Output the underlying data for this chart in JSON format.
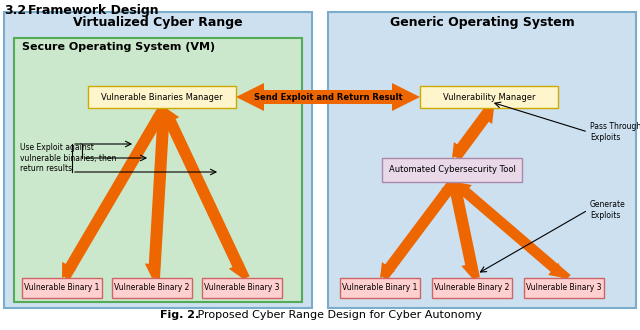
{
  "title_bold": "Fig. 2.",
  "title_rest": " Proposed Cyber Range Design for Cyber Autonomy",
  "header_num": "3.2",
  "header_text": "Framework Design",
  "left_panel_title": "Virtualized Cyber Range",
  "left_inner_title": "Secure Operating System (VM)",
  "right_panel_title": "Generic Operating System",
  "left_box": "Vulnerable Binaries Manager",
  "right_box": "Vulnerability Manager",
  "middle_label": "Send Exploit and Return Result",
  "auto_tool": "Automated Cybersecurity Tool",
  "left_binaries": [
    "Vulnerable Binary 1",
    "Vulnerable Binary 2",
    "Vulnerable Binary 3"
  ],
  "right_binaries": [
    "Vulnerable Binary 1",
    "Vulnerable Binary 2",
    "Vulnerable Binary 3"
  ],
  "left_annotation": "Use Exploit against\nvulnerable binaries, then\nreturn results",
  "right_annotation_1": "Pass Through\nExploits",
  "right_annotation_2": "Generate\nExploits",
  "bg_light_blue": "#cce0f0",
  "bg_light_green": "#cce8cc",
  "bg_auto_tool": "#e8d8e8",
  "box_fill_yellow": "#fff5cc",
  "box_fill_pink": "#ffd0d0",
  "arrow_color": "#ee6600",
  "figsize": [
    6.4,
    3.3
  ],
  "dpi": 100
}
